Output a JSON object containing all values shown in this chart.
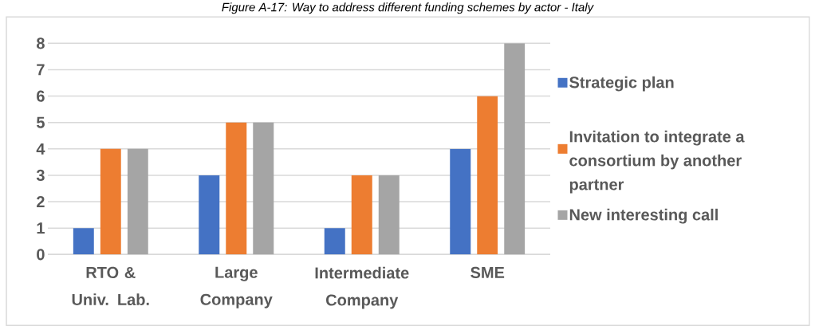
{
  "chart_data": {
    "type": "bar",
    "title": "Figure A-17: Way to address different funding schemes by actor - Italy",
    "categories": [
      "RTO & Univ. Lab.",
      "Large Company",
      "Intermediate Company",
      "SME"
    ],
    "series": [
      {
        "name": "Strategic plan",
        "color": "#4472c4",
        "values": [
          1,
          3,
          1,
          4
        ]
      },
      {
        "name": "Invitation to integrate a consortium by another partner",
        "color": "#ed7d31",
        "values": [
          4,
          5,
          3,
          6
        ]
      },
      {
        "name": "New interesting call",
        "color": "#a5a5a5",
        "values": [
          4,
          5,
          3,
          8
        ]
      }
    ],
    "ylim": [
      0,
      8
    ],
    "yticks": [
      0,
      1,
      2,
      3,
      4,
      5,
      6,
      7,
      8
    ],
    "grid": "y",
    "legend": "right"
  }
}
